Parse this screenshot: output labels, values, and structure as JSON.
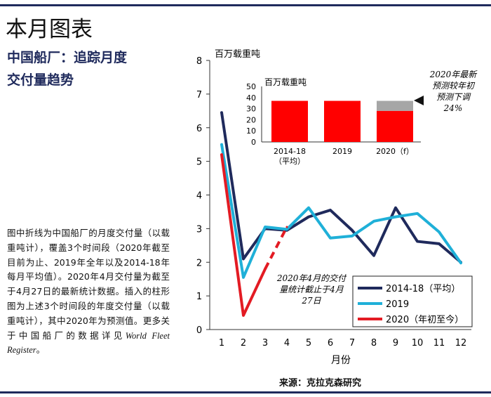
{
  "page_title": "本月图表",
  "heading_line1": "中国船厂：追踪月度",
  "heading_line2": "交付量趋势",
  "description_parts": [
    "图中折线为中国船厂的月度交付量（以载重吨计），覆盖3个时间段（2020年截至目前为止、2019年全年以及2014-18年每月平均值）。2020年4月交付量为截至于4月27日的最新统计数据。插入的柱形图为上述3个时间段的年度交付量（以载重吨计），其中2020年为预测值。更多关于中国船厂的数据详见",
    "World Fleet Register",
    "。"
  ],
  "source": "来源：克拉克森研究",
  "colors": {
    "avg": "#1f2a5c",
    "y2019": "#1fb0d8",
    "y2020": "#e31b23",
    "bar": "#ff0000",
    "forecast_cut": "#a6a6a6",
    "rule": "#1f2a5c"
  },
  "chart_data": [
    {
      "type": "line",
      "ylabel": "百万载重吨",
      "xlabel": "月份",
      "x": [
        1,
        2,
        3,
        4,
        5,
        6,
        7,
        8,
        9,
        10,
        11,
        12
      ],
      "xlim": [
        1,
        12
      ],
      "ylim": [
        0,
        8
      ],
      "yticks": [
        0,
        1,
        2,
        3,
        4,
        5,
        6,
        7,
        8
      ],
      "grid": false,
      "legend": "bottom-right",
      "series": [
        {
          "name": "2014-18（平均）",
          "color": "#1f2a5c",
          "values": [
            6.45,
            2.1,
            3.0,
            2.95,
            3.35,
            3.55,
            2.95,
            2.2,
            3.62,
            2.62,
            2.55,
            2.0
          ]
        },
        {
          "name": "2019",
          "color": "#1fb0d8",
          "values": [
            5.5,
            1.55,
            3.05,
            2.98,
            3.62,
            2.72,
            2.78,
            3.22,
            3.35,
            3.45,
            2.9,
            1.98
          ]
        },
        {
          "name": "2020（年初至今）",
          "color": "#e31b23",
          "values": [
            5.2,
            0.42,
            1.8,
            3.05,
            null,
            null,
            null,
            null,
            null,
            null,
            null,
            null
          ],
          "dashed_from_index": 2
        }
      ],
      "annotations": [
        {
          "text_lines": [
            "2020年4月的交付",
            "量统计截止于4月",
            "27日"
          ]
        }
      ]
    },
    {
      "type": "bar",
      "ylabel": "百万载重吨",
      "categories": [
        "2014-18\n（平均）",
        "2019",
        "2020（f）"
      ],
      "values": [
        37,
        37,
        28
      ],
      "forecast_cut": [
        0,
        0,
        9
      ],
      "ylim": [
        0,
        50
      ],
      "yticks": [
        0,
        10,
        20,
        30,
        40,
        50
      ],
      "annotations": [
        {
          "text_lines": [
            "2020年最新",
            "预测较年初",
            "预测下调",
            "24%"
          ]
        }
      ]
    }
  ]
}
